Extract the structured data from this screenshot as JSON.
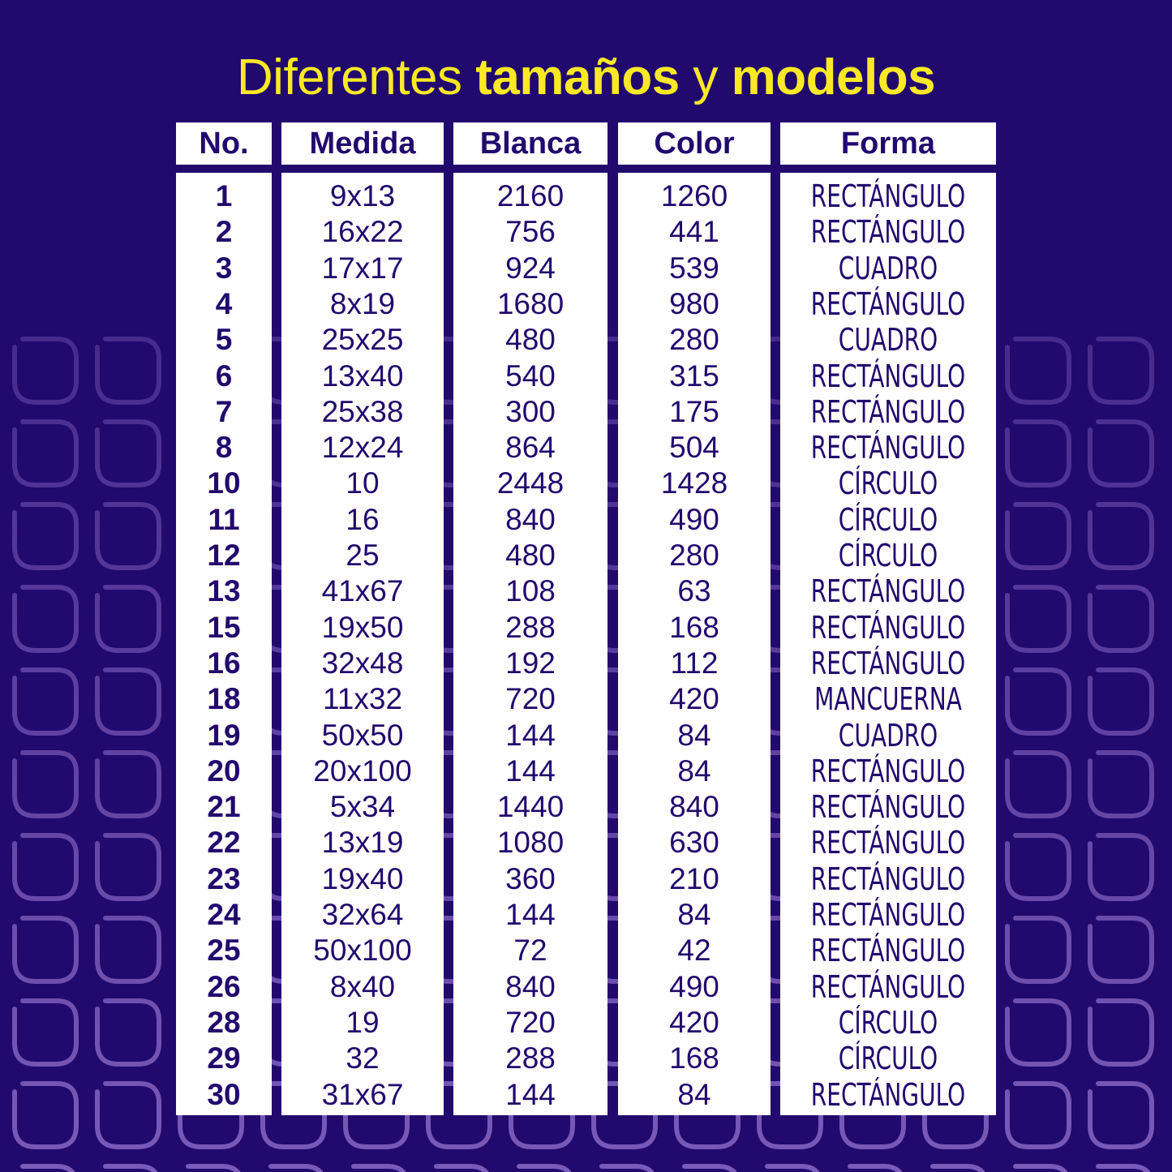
{
  "title": {
    "part1": "Diferentes ",
    "part2": "tamaños",
    "part3": " y ",
    "part4": "modelos"
  },
  "colors": {
    "background": "#21096e",
    "title": "#fbe925",
    "table_bg": "#ffffff",
    "table_text": "#21096e",
    "pattern_stroke": "#7a5ab8"
  },
  "table": {
    "headers": [
      "No.",
      "Medida",
      "Blanca",
      "Color",
      "Forma"
    ],
    "rows": [
      [
        "1",
        "9x13",
        "2160",
        "1260",
        "RECTÁNGULO"
      ],
      [
        "2",
        "16x22",
        "756",
        "441",
        "RECTÁNGULO"
      ],
      [
        "3",
        "17x17",
        "924",
        "539",
        "CUADRO"
      ],
      [
        "4",
        "8x19",
        "1680",
        "980",
        "RECTÁNGULO"
      ],
      [
        "5",
        "25x25",
        "480",
        "280",
        "CUADRO"
      ],
      [
        "6",
        "13x40",
        "540",
        "315",
        "RECTÁNGULO"
      ],
      [
        "7",
        "25x38",
        "300",
        "175",
        "RECTÁNGULO"
      ],
      [
        "8",
        "12x24",
        "864",
        "504",
        "RECTÁNGULO"
      ],
      [
        "10",
        "10",
        "2448",
        "1428",
        "CÍRCULO"
      ],
      [
        "11",
        "16",
        "840",
        "490",
        "CÍRCULO"
      ],
      [
        "12",
        "25",
        "480",
        "280",
        "CÍRCULO"
      ],
      [
        "13",
        "41x67",
        "108",
        "63",
        "RECTÁNGULO"
      ],
      [
        "15",
        "19x50",
        "288",
        "168",
        "RECTÁNGULO"
      ],
      [
        "16",
        "32x48",
        "192",
        "112",
        "RECTÁNGULO"
      ],
      [
        "18",
        "11x32",
        "720",
        "420",
        "MANCUERNA"
      ],
      [
        "19",
        "50x50",
        "144",
        "84",
        "CUADRO"
      ],
      [
        "20",
        "20x100",
        "144",
        "84",
        "RECTÁNGULO"
      ],
      [
        "21",
        "5x34",
        "1440",
        "840",
        "RECTÁNGULO"
      ],
      [
        "22",
        "13x19",
        "1080",
        "630",
        "RECTÁNGULO"
      ],
      [
        "23",
        "19x40",
        "360",
        "210",
        "RECTÁNGULO"
      ],
      [
        "24",
        "32x64",
        "144",
        "84",
        "RECTÁNGULO"
      ],
      [
        "25",
        "50x100",
        "72",
        "42",
        "RECTÁNGULO"
      ],
      [
        "26",
        "8x40",
        "840",
        "490",
        "RECTÁNGULO"
      ],
      [
        "28",
        "19",
        "720",
        "420",
        "CÍRCULO"
      ],
      [
        "29",
        "32",
        "288",
        "168",
        "CÍRCULO"
      ],
      [
        "30",
        "31x67",
        "144",
        "84",
        "RECTÁNGULO"
      ]
    ]
  }
}
